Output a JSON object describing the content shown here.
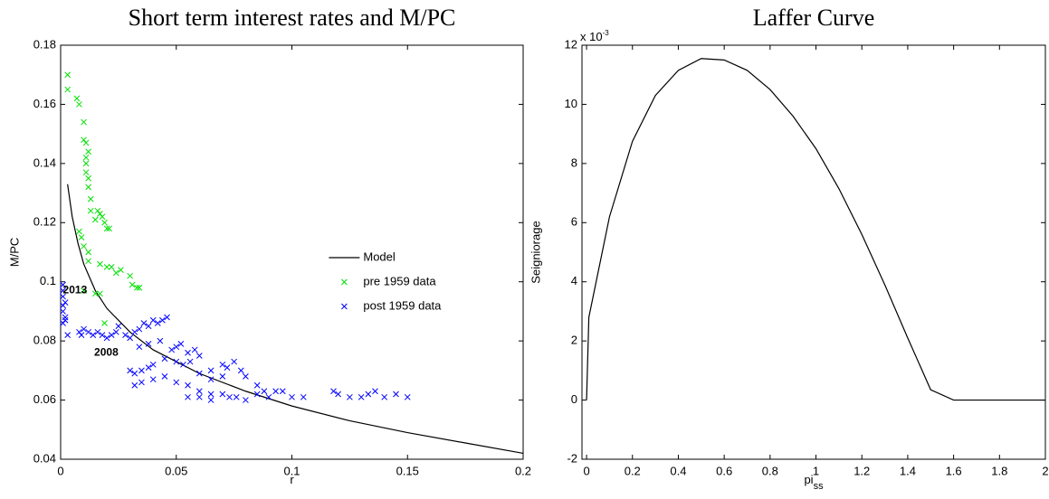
{
  "chart_data": [
    {
      "type": "scatter",
      "title": "Short term interest rates and M/PC",
      "x_label": "r",
      "y_label": "M/PC",
      "xlim": [
        0,
        0.2
      ],
      "ylim": [
        0.04,
        0.18
      ],
      "xticks": [
        0,
        0.05,
        0.1,
        0.15,
        0.2
      ],
      "yticks": [
        0.04,
        0.06,
        0.08,
        0.1,
        0.12,
        0.14,
        0.16,
        0.18
      ],
      "legend": "east",
      "annotations": [
        {
          "text": "2013",
          "x": 0.001,
          "y": 0.097
        },
        {
          "text": "2008",
          "x": 0.0145,
          "y": 0.076
        }
      ],
      "series": [
        {
          "name": "Model",
          "color": "#000000",
          "style": "line",
          "x": [
            0.003,
            0.005,
            0.0075,
            0.01,
            0.015,
            0.02,
            0.03,
            0.04,
            0.05,
            0.06,
            0.08,
            0.1,
            0.125,
            0.15,
            0.175,
            0.2
          ],
          "values": [
            0.133,
            0.122,
            0.113,
            0.106,
            0.097,
            0.091,
            0.083,
            0.077,
            0.073,
            0.069,
            0.063,
            0.058,
            0.053,
            0.049,
            0.0455,
            0.042
          ]
        },
        {
          "name": "pre 1959 data",
          "color": "#00e000",
          "style": "x",
          "x": [
            0.003,
            0.003,
            0.007,
            0.008,
            0.01,
            0.01,
            0.011,
            0.011,
            0.012,
            0.011,
            0.011,
            0.012,
            0.012,
            0.013,
            0.013,
            0.015,
            0.016,
            0.017,
            0.018,
            0.019,
            0.02,
            0.021,
            0.009,
            0.008,
            0.01,
            0.012,
            0.012,
            0.017,
            0.02,
            0.022,
            0.024,
            0.026,
            0.03,
            0.031,
            0.033,
            0.034,
            0.015,
            0.017,
            0.01,
            0.019
          ],
          "values": [
            0.17,
            0.165,
            0.162,
            0.16,
            0.154,
            0.148,
            0.147,
            0.142,
            0.144,
            0.14,
            0.137,
            0.135,
            0.132,
            0.128,
            0.124,
            0.121,
            0.124,
            0.123,
            0.122,
            0.12,
            0.118,
            0.118,
            0.115,
            0.117,
            0.112,
            0.11,
            0.107,
            0.106,
            0.105,
            0.105,
            0.103,
            0.104,
            0.102,
            0.099,
            0.098,
            0.098,
            0.096,
            0.096,
            0.097,
            0.086
          ]
        },
        {
          "name": "post 1959 data",
          "color": "#0000ff",
          "style": "x",
          "x": [
            0.001,
            0.001,
            0.001,
            0.001,
            0.001,
            0.002,
            0.002,
            0.001,
            0.003,
            0.002,
            0.008,
            0.009,
            0.01,
            0.012,
            0.014,
            0.016,
            0.018,
            0.02,
            0.022,
            0.024,
            0.025,
            0.028,
            0.03,
            0.032,
            0.034,
            0.036,
            0.038,
            0.04,
            0.042,
            0.044,
            0.046,
            0.043,
            0.038,
            0.034,
            0.03,
            0.032,
            0.035,
            0.038,
            0.04,
            0.045,
            0.048,
            0.05,
            0.052,
            0.055,
            0.058,
            0.06,
            0.05,
            0.053,
            0.056,
            0.06,
            0.065,
            0.07,
            0.072,
            0.075,
            0.078,
            0.08,
            0.032,
            0.035,
            0.04,
            0.045,
            0.05,
            0.055,
            0.06,
            0.065,
            0.055,
            0.06,
            0.065,
            0.07,
            0.073,
            0.076,
            0.08,
            0.085,
            0.088,
            0.09,
            0.093,
            0.096,
            0.1,
            0.105,
            0.118,
            0.12,
            0.125,
            0.13,
            0.133,
            0.136,
            0.14,
            0.145,
            0.15,
            0.07,
            0.085,
            0.065
          ],
          "values": [
            0.099,
            0.097,
            0.095,
            0.092,
            0.09,
            0.088,
            0.087,
            0.086,
            0.082,
            0.093,
            0.083,
            0.082,
            0.084,
            0.083,
            0.082,
            0.083,
            0.082,
            0.081,
            0.082,
            0.083,
            0.085,
            0.082,
            0.081,
            0.083,
            0.084,
            0.086,
            0.085,
            0.087,
            0.086,
            0.087,
            0.088,
            0.08,
            0.079,
            0.078,
            0.07,
            0.069,
            0.07,
            0.071,
            0.072,
            0.074,
            0.077,
            0.078,
            0.079,
            0.076,
            0.077,
            0.075,
            0.073,
            0.072,
            0.073,
            0.069,
            0.07,
            0.072,
            0.071,
            0.073,
            0.07,
            0.068,
            0.065,
            0.066,
            0.067,
            0.068,
            0.066,
            0.065,
            0.063,
            0.062,
            0.061,
            0.061,
            0.06,
            0.062,
            0.061,
            0.061,
            0.06,
            0.062,
            0.063,
            0.061,
            0.063,
            0.063,
            0.061,
            0.061,
            0.063,
            0.062,
            0.061,
            0.061,
            0.062,
            0.063,
            0.061,
            0.062,
            0.061,
            0.068,
            0.065,
            0.067
          ]
        }
      ]
    },
    {
      "type": "line",
      "title": "Laffer Curve",
      "x_label": "pi",
      "x_label_subscript": "ss",
      "y_label": "Seigniorage",
      "y_multiplier": "x 10",
      "y_multiplier_exponent": "-3",
      "xlim": [
        -0.02,
        2
      ],
      "ylim": [
        -2,
        12
      ],
      "xticks": [
        0,
        0.2,
        0.4,
        0.6,
        0.8,
        1,
        1.2,
        1.4,
        1.6,
        1.8,
        2
      ],
      "yticks": [
        -2,
        0,
        2,
        4,
        6,
        8,
        10,
        12
      ],
      "series": [
        {
          "color": "#000000",
          "x": [
            0,
            0.01,
            0.1,
            0.2,
            0.3,
            0.4,
            0.5,
            0.6,
            0.7,
            0.8,
            0.9,
            1,
            1.1,
            1.2,
            1.3,
            1.4,
            1.5,
            1.6,
            1.7,
            1.8,
            1.9,
            2
          ],
          "values": [
            0,
            2.8,
            6.2,
            8.75,
            10.3,
            11.15,
            11.55,
            11.5,
            11.15,
            10.5,
            9.6,
            8.5,
            7.15,
            5.6,
            3.9,
            2.1,
            0.35,
            0,
            0,
            0,
            0,
            0
          ]
        }
      ]
    }
  ]
}
